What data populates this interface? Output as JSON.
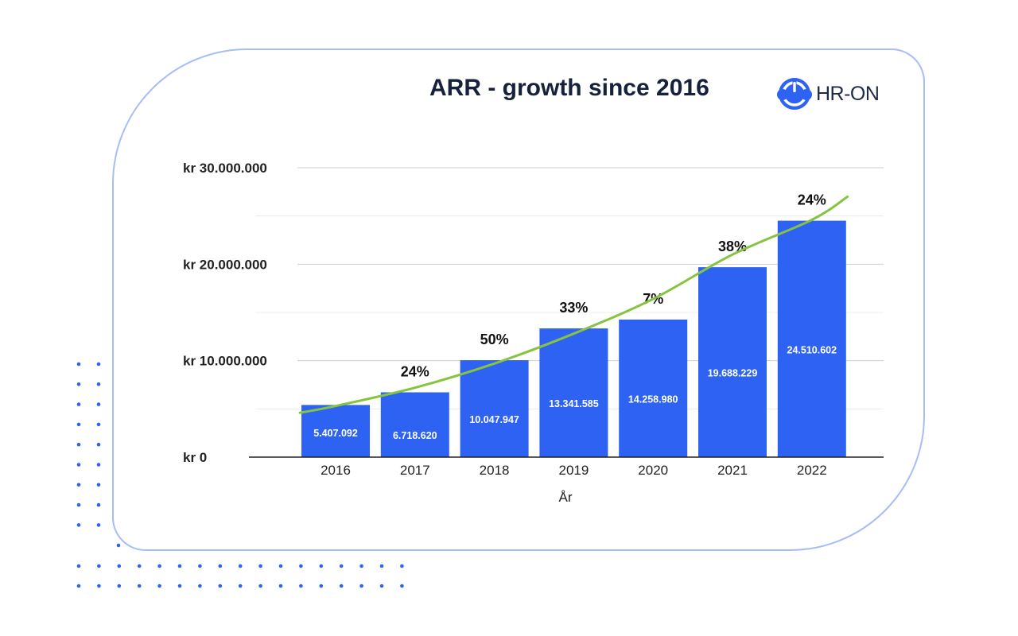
{
  "chart_data": {
    "type": "bar",
    "title": "ARR - growth since 2016",
    "xlabel": "År",
    "ylabel": "",
    "categories": [
      "2016",
      "2017",
      "2018",
      "2019",
      "2020",
      "2021",
      "2022"
    ],
    "values": [
      5407092,
      6718620,
      10047947,
      13341585,
      14258980,
      19688229,
      24510602
    ],
    "value_labels": [
      "5.407.092",
      "6.718.620",
      "10.047.947",
      "13.341.585",
      "14.258.980",
      "19.688.229",
      "24.510.602"
    ],
    "growth_labels": [
      "",
      "24%",
      "50%",
      "33%",
      "7%",
      "38%",
      "24%"
    ],
    "ylim": [
      0,
      30000000
    ],
    "yticks": [
      0,
      10000000,
      20000000,
      30000000
    ],
    "ytick_labels": [
      "kr 0",
      "kr 10.000.000",
      "kr 20.000.000",
      "kr 30.000.000"
    ],
    "grid": true,
    "legend": "none",
    "trendline": {
      "type": "exponential",
      "x": [
        2015.55,
        2016,
        2017,
        2018,
        2019,
        2020,
        2021,
        2022,
        2022.45
      ],
      "y": [
        4600000,
        5300000,
        7200000,
        9700000,
        12800000,
        16400000,
        21000000,
        24600000,
        27000000
      ]
    },
    "colors": {
      "bar": "#2e62f2",
      "trend": "#86c440",
      "grid": "#d9d9d9",
      "axis": "#222222",
      "value_label": "#ffffff"
    }
  },
  "logo": {
    "text": "HR-ON",
    "icon": "power-icon",
    "color": "#2e62f2"
  },
  "decor": {
    "dot_color": "#2e62f2",
    "frame_color": "#a7bdf7"
  }
}
